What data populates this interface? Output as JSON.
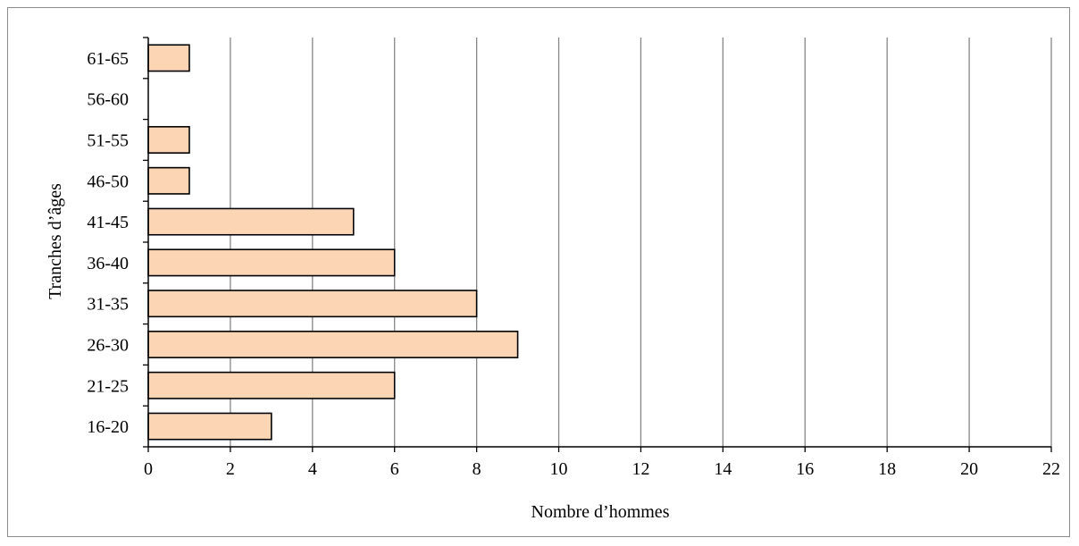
{
  "chart_data": {
    "type": "bar",
    "orientation": "horizontal",
    "categories": [
      "16-20",
      "21-25",
      "26-30",
      "31-35",
      "36-40",
      "41-45",
      "46-50",
      "51-55",
      "56-60",
      "61-65"
    ],
    "values": [
      3,
      6,
      9,
      8,
      6,
      5,
      1,
      1,
      0,
      1
    ],
    "xlabel": "Nombre d’hommes",
    "ylabel": "Tranches d’âges",
    "xlim": [
      0,
      22
    ],
    "xticks": [
      0,
      2,
      4,
      6,
      8,
      10,
      12,
      14,
      16,
      18,
      20,
      22
    ],
    "grid": "vertical",
    "bar_color": "#fcd5b5",
    "bar_edge_color": "#000000",
    "grid_color": "#868686"
  }
}
